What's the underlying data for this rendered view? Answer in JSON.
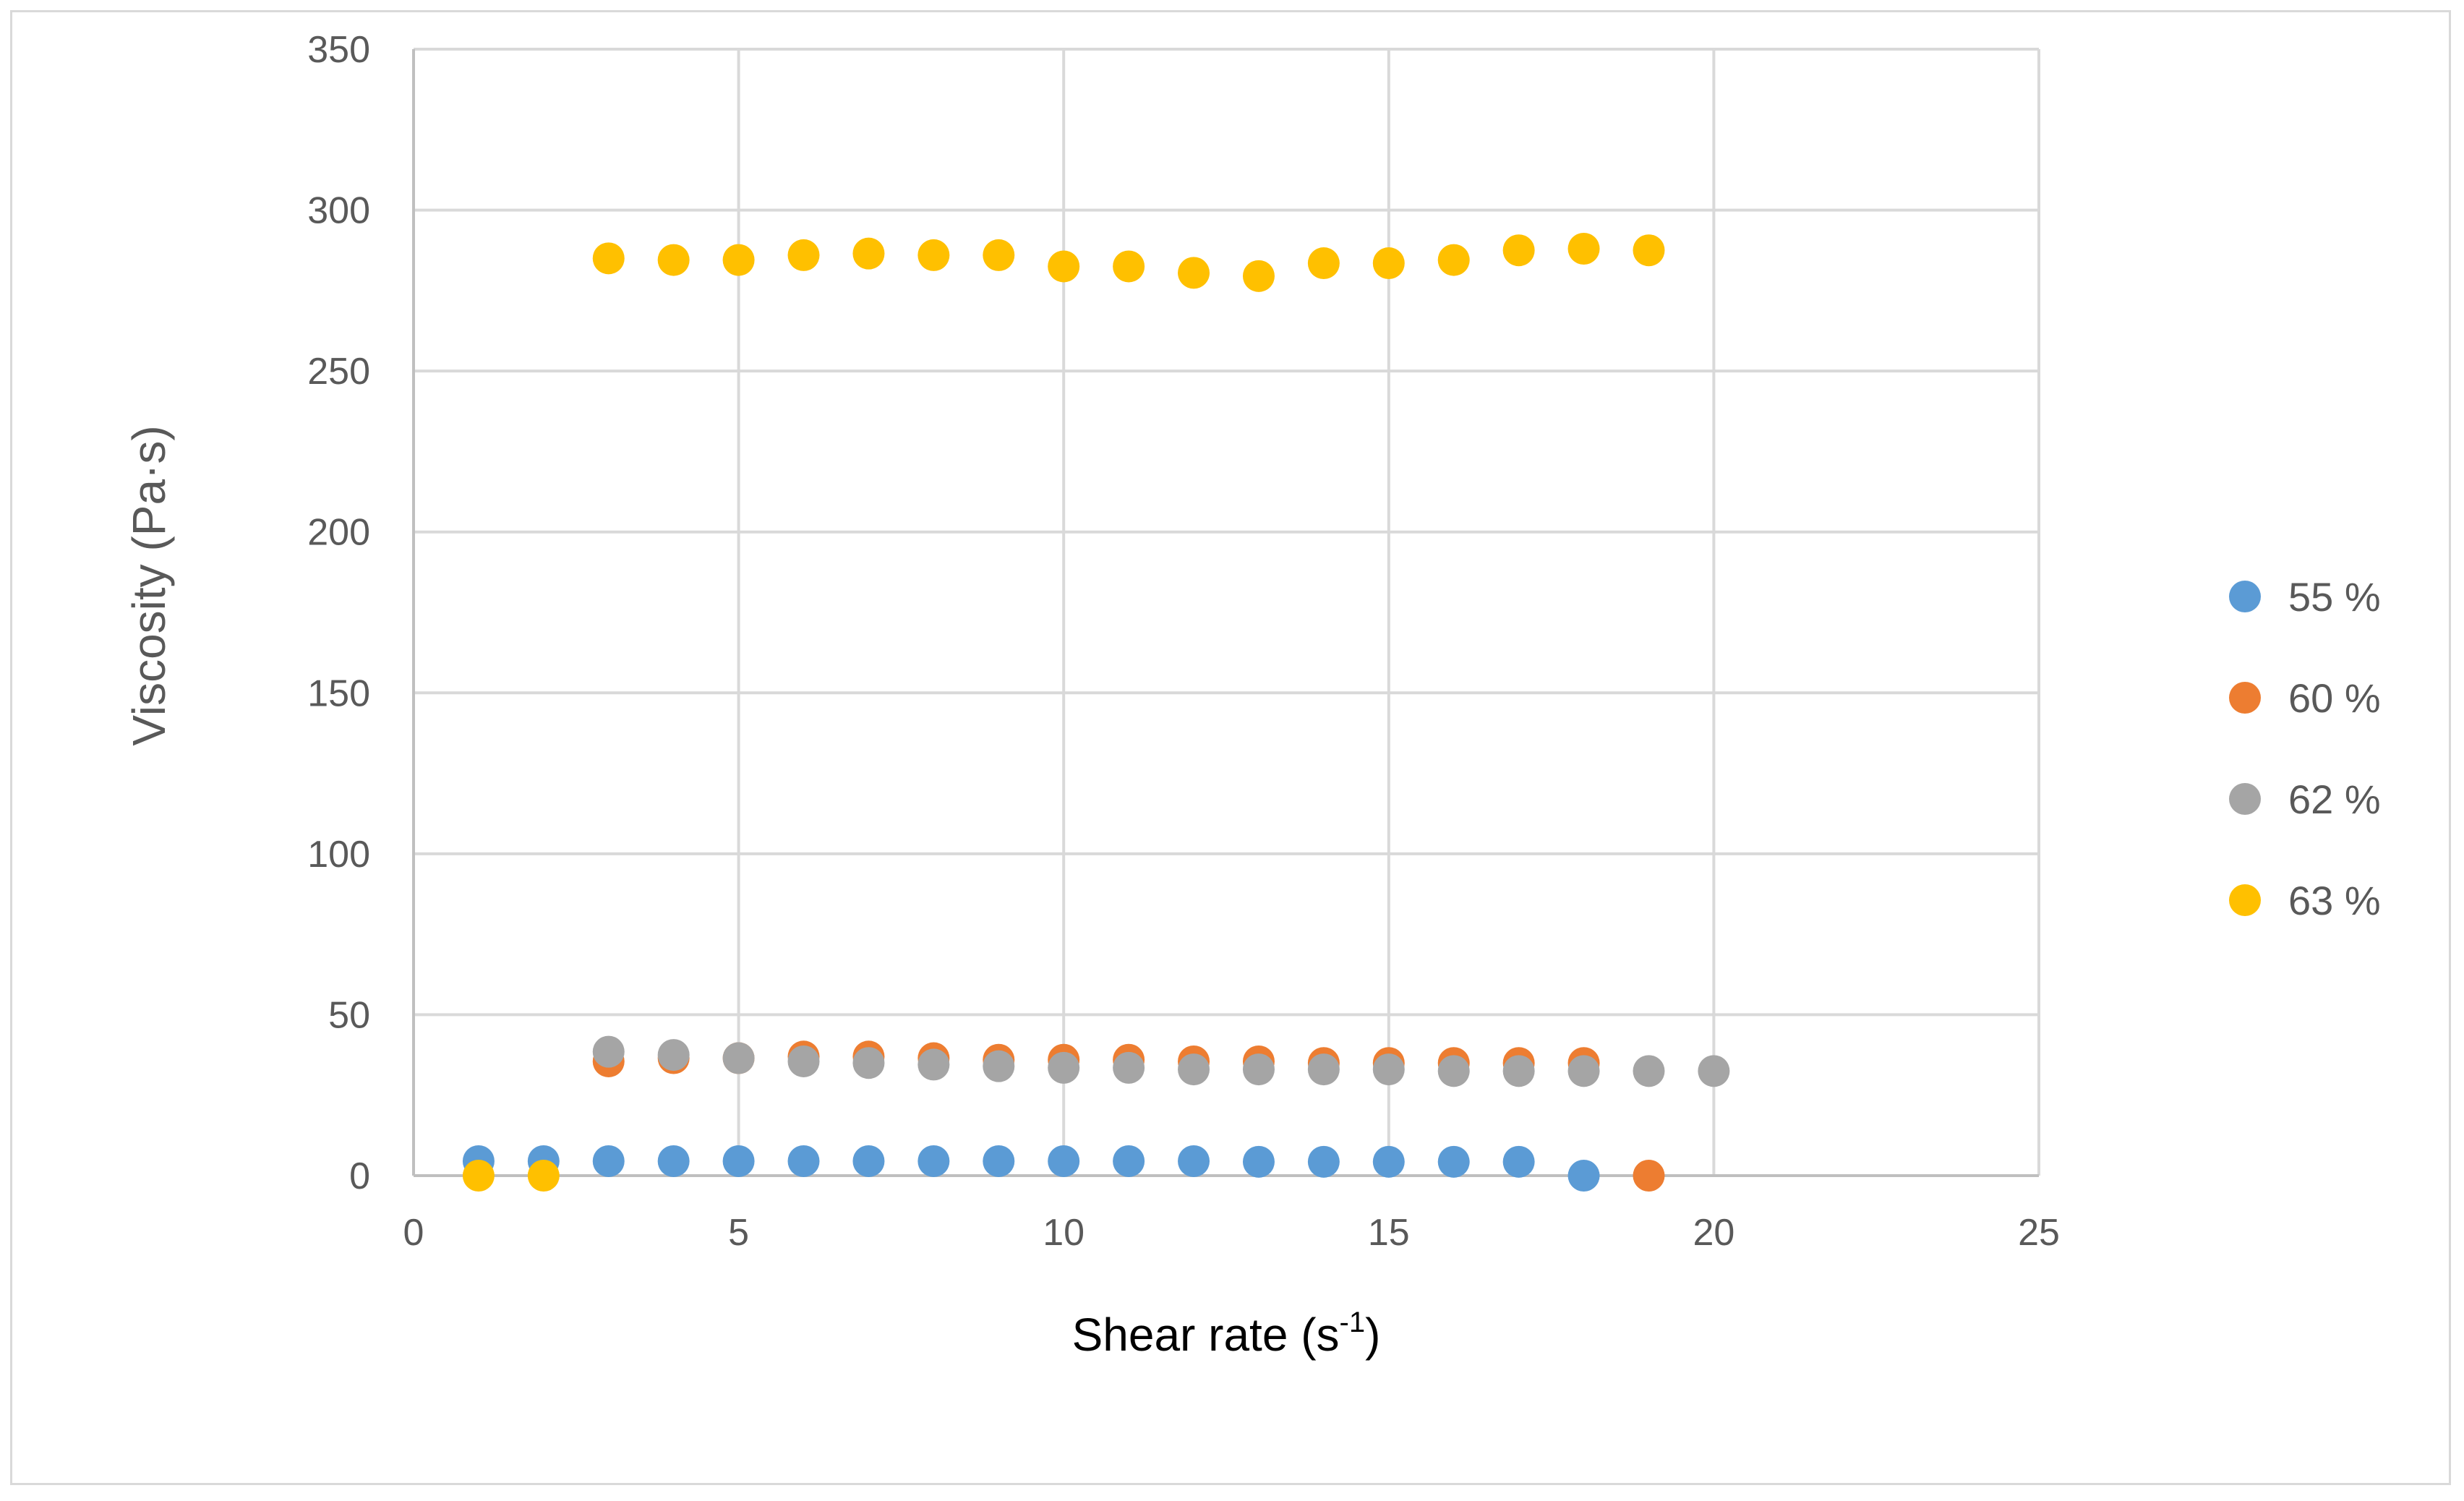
{
  "chart_data": {
    "type": "scatter",
    "title": "",
    "xlabel": "Shear rate (s",
    "xlabel_sup": "-1",
    "xlabel_suffix": ")",
    "ylabel": "Viscosity (Pa·s)",
    "xlim": [
      0,
      25
    ],
    "ylim": [
      0,
      350
    ],
    "xticks": [
      0,
      5,
      10,
      15,
      20,
      25
    ],
    "yticks": [
      0,
      50,
      100,
      150,
      200,
      250,
      300,
      350
    ],
    "grid": true,
    "legend_position": "right",
    "series": [
      {
        "name": "55 %",
        "color": "#5b9bd5",
        "x": [
          1,
          2,
          3,
          4,
          5,
          6,
          7,
          8,
          9,
          10,
          11,
          12,
          13,
          14,
          15,
          16,
          17,
          18
        ],
        "y": [
          4.5,
          4.5,
          4.5,
          4.5,
          4.5,
          4.5,
          4.5,
          4.5,
          4.5,
          4.5,
          4.5,
          4.5,
          4.3,
          4.3,
          4.3,
          4.3,
          4.3,
          0
        ]
      },
      {
        "name": "60 %",
        "color": "#ed7d31",
        "x": [
          3,
          4,
          5,
          6,
          7,
          8,
          9,
          10,
          11,
          12,
          13,
          14,
          15,
          16,
          17,
          18,
          19
        ],
        "y": [
          35.5,
          36.5,
          36.5,
          37,
          37,
          36.5,
          36,
          36,
          36,
          35.5,
          35.5,
          35,
          35,
          35,
          35,
          35,
          0
        ]
      },
      {
        "name": "62 %",
        "color": "#a5a5a5",
        "x": [
          3,
          4,
          5,
          6,
          7,
          8,
          9,
          10,
          11,
          12,
          13,
          14,
          15,
          16,
          17,
          18,
          19,
          20
        ],
        "y": [
          38.5,
          37.5,
          36.5,
          35.5,
          35,
          34.5,
          34,
          33.5,
          33.5,
          33,
          33,
          33,
          33,
          32.5,
          32.5,
          32.5,
          32.5,
          32.5
        ]
      },
      {
        "name": "63 %",
        "color": "#ffc000",
        "x": [
          1,
          2,
          3,
          4,
          5,
          6,
          7,
          8,
          9,
          10,
          11,
          12,
          13,
          14,
          15,
          16,
          17,
          18,
          19
        ],
        "y": [
          0,
          0,
          285,
          284.5,
          284.5,
          286,
          286.5,
          286,
          286,
          282.5,
          282.5,
          280.5,
          279.5,
          283.5,
          283.5,
          284.5,
          287.5,
          288,
          287.5
        ]
      }
    ]
  }
}
